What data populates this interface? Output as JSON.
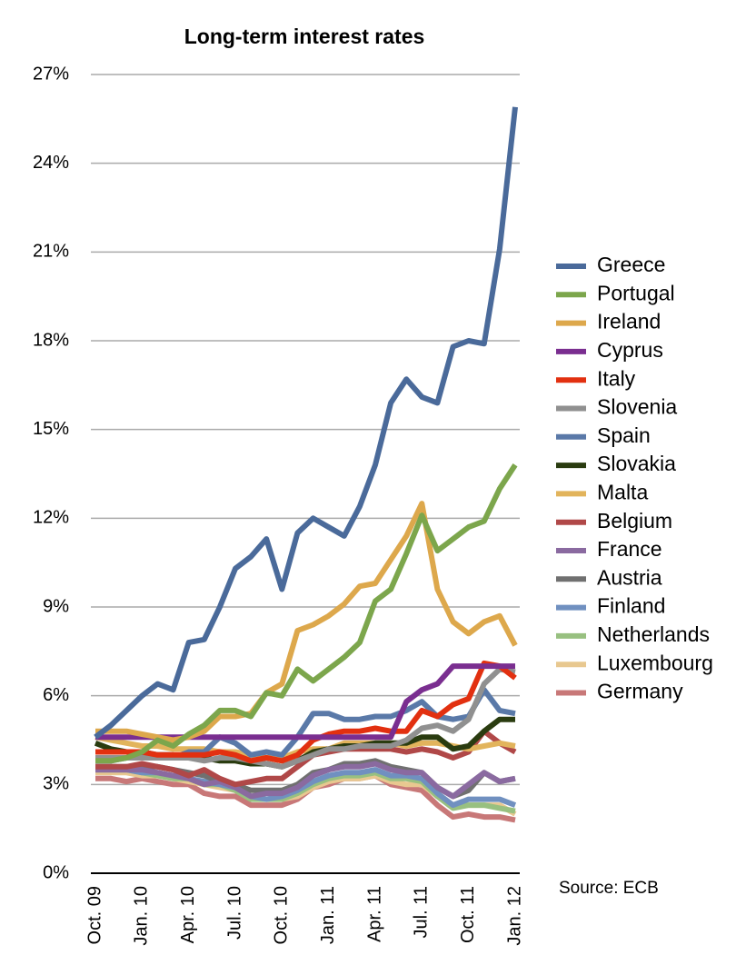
{
  "chart_data": {
    "type": "line",
    "title": "Long-term interest rates",
    "source": "Source: ECB",
    "categories": [
      "Oct. 09",
      null,
      null,
      "Jan. 10",
      null,
      null,
      "Apr. 10",
      null,
      null,
      "Jul. 10",
      null,
      null,
      "Oct. 10",
      null,
      null,
      "Jan. 11",
      null,
      null,
      "Apr. 11",
      null,
      null,
      "Jul. 11",
      null,
      null,
      "Oct. 11",
      null,
      null,
      "Jan. 12"
    ],
    "ylim": [
      0,
      27
    ],
    "yticks": [
      {
        "value": 0,
        "label": "0%"
      },
      {
        "value": 3,
        "label": "3%"
      },
      {
        "value": 6,
        "label": "6%"
      },
      {
        "value": 9,
        "label": "9%"
      },
      {
        "value": 12,
        "label": "12%"
      },
      {
        "value": 15,
        "label": "15%"
      },
      {
        "value": 18,
        "label": "18%"
      },
      {
        "value": 21,
        "label": "21%"
      },
      {
        "value": 24,
        "label": "24%"
      },
      {
        "value": 27,
        "label": "27%"
      }
    ],
    "grid": true,
    "legend": "right",
    "series": [
      {
        "name": "Greece",
        "color": "#4a6a9a",
        "values": [
          4.6,
          5.0,
          5.5,
          6.0,
          6.4,
          6.2,
          7.8,
          7.9,
          9.0,
          10.3,
          10.7,
          11.3,
          9.6,
          11.5,
          12.0,
          11.7,
          11.4,
          12.4,
          13.8,
          15.9,
          16.7,
          16.1,
          15.9,
          17.8,
          18.0,
          17.9,
          21.1,
          25.9
        ]
      },
      {
        "name": "Portugal",
        "color": "#7ca64c",
        "values": [
          3.8,
          3.8,
          3.9,
          4.1,
          4.5,
          4.3,
          4.7,
          5.0,
          5.5,
          5.5,
          5.3,
          6.1,
          6.0,
          6.9,
          6.5,
          6.9,
          7.3,
          7.8,
          9.2,
          9.6,
          10.8,
          12.1,
          10.9,
          11.3,
          11.7,
          11.9,
          13.0,
          13.8
        ]
      },
      {
        "name": "Ireland",
        "color": "#dda84c",
        "values": [
          4.8,
          4.8,
          4.8,
          4.7,
          4.6,
          4.5,
          4.6,
          4.8,
          5.3,
          5.3,
          5.4,
          6.1,
          6.4,
          8.2,
          8.4,
          8.7,
          9.1,
          9.7,
          9.8,
          10.6,
          11.4,
          12.5,
          9.6,
          8.5,
          8.1,
          8.5,
          8.7,
          7.7
        ]
      },
      {
        "name": "Cyprus",
        "color": "#7a2e90",
        "values": [
          4.6,
          4.6,
          4.6,
          4.6,
          4.6,
          4.6,
          4.6,
          4.6,
          4.6,
          4.6,
          4.6,
          4.6,
          4.6,
          4.6,
          4.6,
          4.6,
          4.6,
          4.6,
          4.6,
          4.6,
          5.8,
          6.2,
          6.4,
          7.0,
          7.0,
          7.0,
          7.0,
          7.0
        ]
      },
      {
        "name": "Italy",
        "color": "#e23010",
        "values": [
          4.1,
          4.1,
          4.1,
          4.1,
          4.0,
          4.0,
          4.0,
          4.0,
          4.1,
          4.0,
          3.8,
          3.9,
          3.8,
          4.0,
          4.5,
          4.7,
          4.8,
          4.8,
          4.9,
          4.8,
          4.8,
          5.5,
          5.3,
          5.7,
          5.9,
          7.1,
          7.0,
          6.6
        ]
      },
      {
        "name": "Slovenia",
        "color": "#909090",
        "values": [
          3.9,
          3.9,
          3.9,
          3.9,
          3.9,
          3.9,
          3.9,
          3.8,
          3.9,
          3.9,
          3.8,
          3.7,
          3.6,
          3.8,
          4.0,
          4.2,
          4.2,
          4.3,
          4.3,
          4.3,
          4.5,
          4.9,
          5.0,
          4.8,
          5.2,
          6.4,
          6.9,
          6.8
        ]
      },
      {
        "name": "Spain",
        "color": "#5a79a8",
        "values": [
          3.8,
          3.8,
          3.9,
          4.0,
          4.0,
          3.9,
          4.1,
          4.1,
          4.6,
          4.4,
          4.0,
          4.1,
          4.0,
          4.6,
          5.4,
          5.4,
          5.2,
          5.2,
          5.3,
          5.3,
          5.5,
          5.8,
          5.3,
          5.2,
          5.3,
          6.2,
          5.5,
          5.4
        ]
      },
      {
        "name": "Slovakia",
        "color": "#2a3c10",
        "values": [
          4.4,
          4.2,
          4.1,
          4.1,
          4.0,
          4.0,
          3.9,
          3.9,
          3.8,
          3.8,
          3.7,
          3.7,
          3.6,
          3.8,
          4.1,
          4.2,
          4.3,
          4.3,
          4.4,
          4.4,
          4.4,
          4.6,
          4.6,
          4.2,
          4.3,
          4.8,
          5.2,
          5.2
        ]
      },
      {
        "name": "Malta",
        "color": "#e2b45c",
        "values": [
          4.6,
          4.5,
          4.4,
          4.3,
          4.3,
          4.2,
          4.2,
          4.2,
          4.1,
          4.1,
          4.0,
          3.9,
          3.9,
          4.1,
          4.2,
          4.2,
          4.4,
          4.4,
          4.4,
          4.4,
          4.3,
          4.4,
          4.4,
          4.3,
          4.2,
          4.3,
          4.4,
          4.3
        ]
      },
      {
        "name": "Belgium",
        "color": "#b04848",
        "values": [
          3.6,
          3.6,
          3.6,
          3.7,
          3.6,
          3.5,
          3.3,
          3.5,
          3.2,
          3.0,
          3.1,
          3.2,
          3.2,
          3.6,
          4.0,
          4.1,
          4.2,
          4.2,
          4.2,
          4.2,
          4.1,
          4.2,
          4.1,
          3.9,
          4.1,
          4.8,
          4.4,
          4.1
        ]
      },
      {
        "name": "France",
        "color": "#8a6aa0",
        "values": [
          3.5,
          3.5,
          3.5,
          3.5,
          3.4,
          3.3,
          3.2,
          3.0,
          3.1,
          2.9,
          2.6,
          2.7,
          2.7,
          2.9,
          3.3,
          3.5,
          3.6,
          3.6,
          3.7,
          3.5,
          3.4,
          3.4,
          2.9,
          2.6,
          3.0,
          3.4,
          3.1,
          3.2
        ]
      },
      {
        "name": "Austria",
        "color": "#707070",
        "values": [
          3.6,
          3.6,
          3.6,
          3.6,
          3.6,
          3.5,
          3.4,
          3.3,
          3.1,
          3.0,
          2.8,
          2.8,
          2.8,
          3.0,
          3.4,
          3.5,
          3.7,
          3.7,
          3.8,
          3.6,
          3.5,
          3.4,
          2.9,
          2.6,
          2.8,
          3.4,
          3.1,
          3.2
        ]
      },
      {
        "name": "Finland",
        "color": "#7090c0",
        "values": [
          3.5,
          3.5,
          3.5,
          3.4,
          3.4,
          3.3,
          3.2,
          3.1,
          3.0,
          2.9,
          2.6,
          2.5,
          2.6,
          2.8,
          3.1,
          3.3,
          3.4,
          3.4,
          3.5,
          3.3,
          3.3,
          3.2,
          2.7,
          2.3,
          2.5,
          2.5,
          2.5,
          2.3
        ]
      },
      {
        "name": "Netherlands",
        "color": "#98c080",
        "values": [
          3.5,
          3.5,
          3.5,
          3.4,
          3.3,
          3.2,
          3.2,
          3.0,
          3.0,
          2.8,
          2.5,
          2.5,
          2.5,
          2.7,
          3.0,
          3.2,
          3.3,
          3.3,
          3.4,
          3.2,
          3.2,
          3.1,
          2.6,
          2.2,
          2.3,
          2.3,
          2.2,
          2.1
        ]
      },
      {
        "name": "Luxembourg",
        "color": "#e8c890",
        "values": [
          3.4,
          3.4,
          3.4,
          3.3,
          3.3,
          3.2,
          3.1,
          3.0,
          2.9,
          2.8,
          2.6,
          2.5,
          2.5,
          2.6,
          2.9,
          3.1,
          3.2,
          3.2,
          3.3,
          3.1,
          3.0,
          3.0,
          2.6,
          2.3,
          2.3,
          2.3,
          2.3,
          2.0
        ]
      },
      {
        "name": "Germany",
        "color": "#c87878",
        "values": [
          3.2,
          3.2,
          3.1,
          3.2,
          3.1,
          3.0,
          3.0,
          2.7,
          2.6,
          2.6,
          2.3,
          2.3,
          2.3,
          2.5,
          2.9,
          3.0,
          3.2,
          3.2,
          3.3,
          3.0,
          2.9,
          2.8,
          2.3,
          1.9,
          2.0,
          1.9,
          1.9,
          1.8
        ]
      }
    ]
  }
}
